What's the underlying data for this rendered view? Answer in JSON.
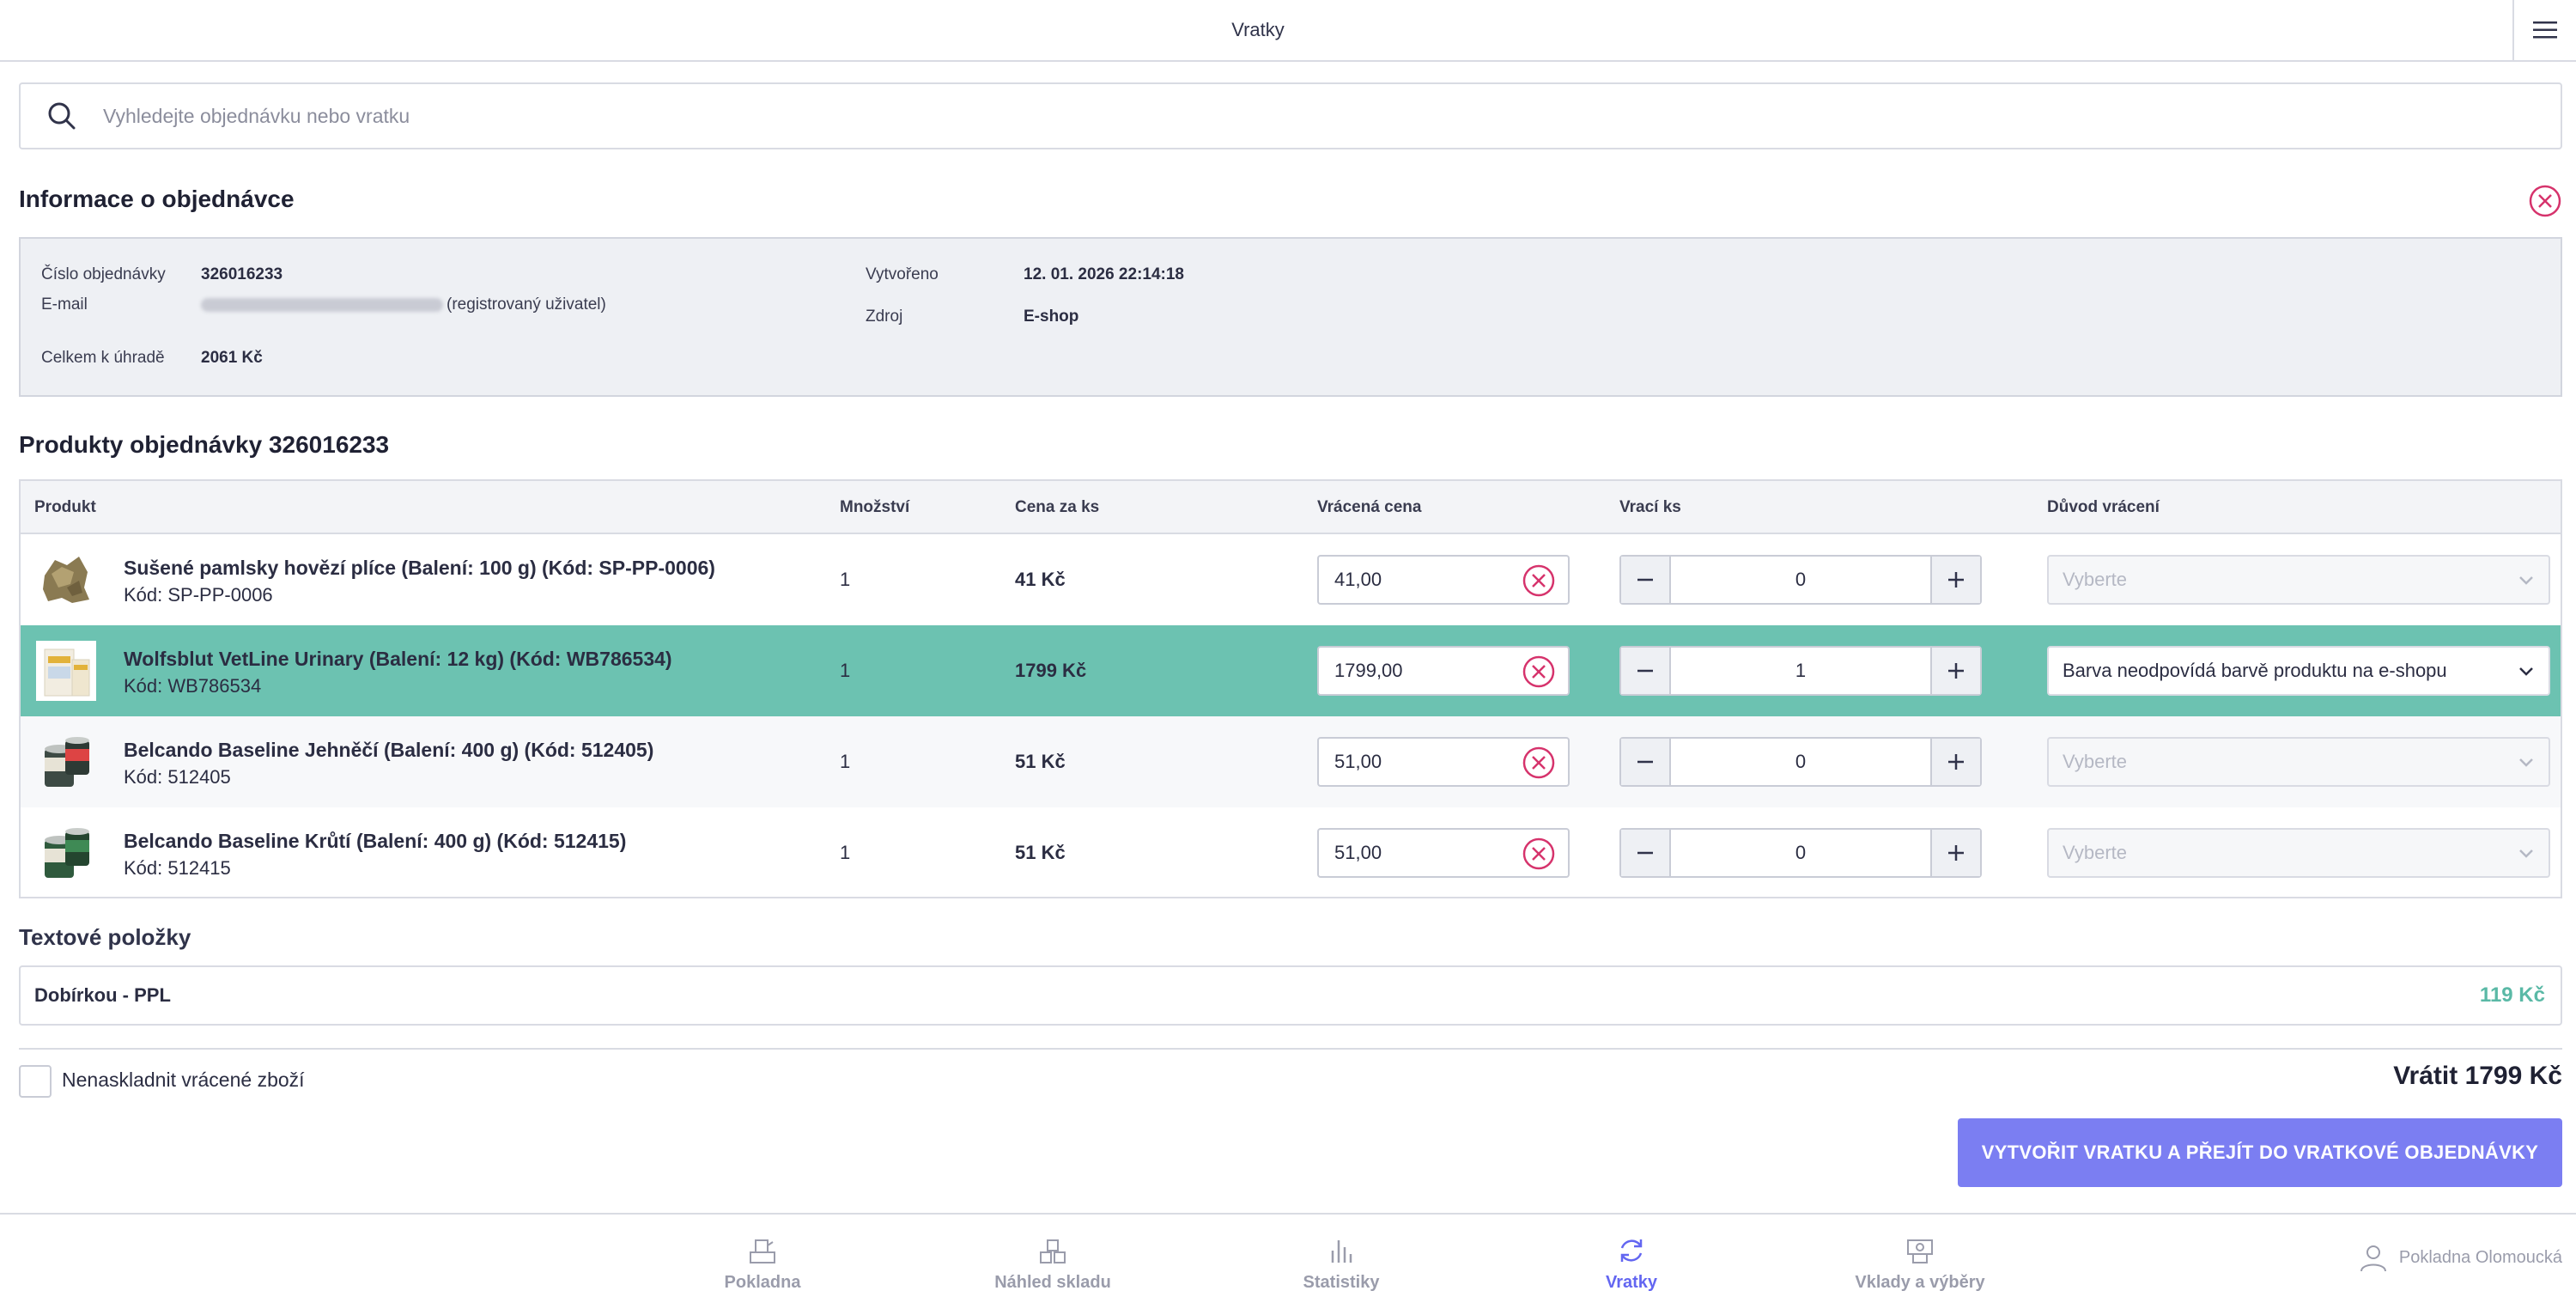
{
  "header": {
    "title": "Vratky",
    "menu_icon": "hamburger-icon"
  },
  "search": {
    "placeholder": "Vyhledejte objednávku nebo vratku"
  },
  "order_info": {
    "heading": "Informace o objednávce",
    "order_number_label": "Číslo objednávky",
    "order_number": "326016233",
    "email_label": "E-mail",
    "email_note": "(registrovaný uživatel)",
    "total_label": "Celkem k úhradě",
    "total": "2061 Kč",
    "created_label": "Vytvořeno",
    "created": "12. 01. 2026 22:14:18",
    "source_label": "Zdroj",
    "source": "E-shop"
  },
  "products": {
    "heading": "Produkty objednávky 326016233",
    "columns": [
      "Produkt",
      "Množství",
      "Cena za ks",
      "Vrácená cena",
      "Vrací ks",
      "Důvod vrácení"
    ],
    "rows": [
      {
        "name": "Sušené pamlsky hovězí plíce (Balení: 100 g) (Kód: SP-PP-0006)",
        "code": "Kód: SP-PP-0006",
        "qty": "1",
        "price": "41 Kč",
        "returned_price": "41,00",
        "return_qty": "0",
        "reason": "Vyberte"
      },
      {
        "name": "Wolfsblut VetLine Urinary (Balení: 12 kg) (Kód: WB786534)",
        "code": "Kód: WB786534",
        "qty": "1",
        "price": "1799 Kč",
        "returned_price": "1799,00",
        "return_qty": "1",
        "reason": "Barva neodpovídá barvě produktu na e-shopu"
      },
      {
        "name": "Belcando Baseline Jehněčí (Balení: 400 g) (Kód: 512405)",
        "code": "Kód: 512405",
        "qty": "1",
        "price": "51 Kč",
        "returned_price": "51,00",
        "return_qty": "0",
        "reason": "Vyberte"
      },
      {
        "name": "Belcando Baseline Krůtí (Balení: 400 g) (Kód: 512415)",
        "code": "Kód: 512415",
        "qty": "1",
        "price": "51 Kč",
        "returned_price": "51,00",
        "return_qty": "0",
        "reason": "Vyberte"
      }
    ]
  },
  "text_items": {
    "heading": "Textové položky",
    "items": [
      {
        "name": "Dobírkou - PPL",
        "price": "119 Kč"
      }
    ]
  },
  "footer": {
    "no_restock_label": "Nenaskladnit vrácené zboží",
    "refund_total": "Vrátit 1799 Kč",
    "create_button": "VYTVOŘIT VRATKU A PŘEJÍT DO VRATKOVÉ OBJEDNÁVKY"
  },
  "nav": {
    "items": [
      {
        "label": "Pokladna",
        "icon": "register-icon"
      },
      {
        "label": "Náhled skladu",
        "icon": "warehouse-icon"
      },
      {
        "label": "Statistiky",
        "icon": "stats-icon"
      },
      {
        "label": "Vratky",
        "icon": "refresh-icon"
      },
      {
        "label": "Vklady a výběry",
        "icon": "cash-icon"
      }
    ],
    "user": "Pokladna Olomoucká"
  },
  "colors": {
    "accent": "#6366f1",
    "selected_row": "#6cc2b1",
    "danger": "#d6336c",
    "price_green": "#5ab9a6"
  }
}
